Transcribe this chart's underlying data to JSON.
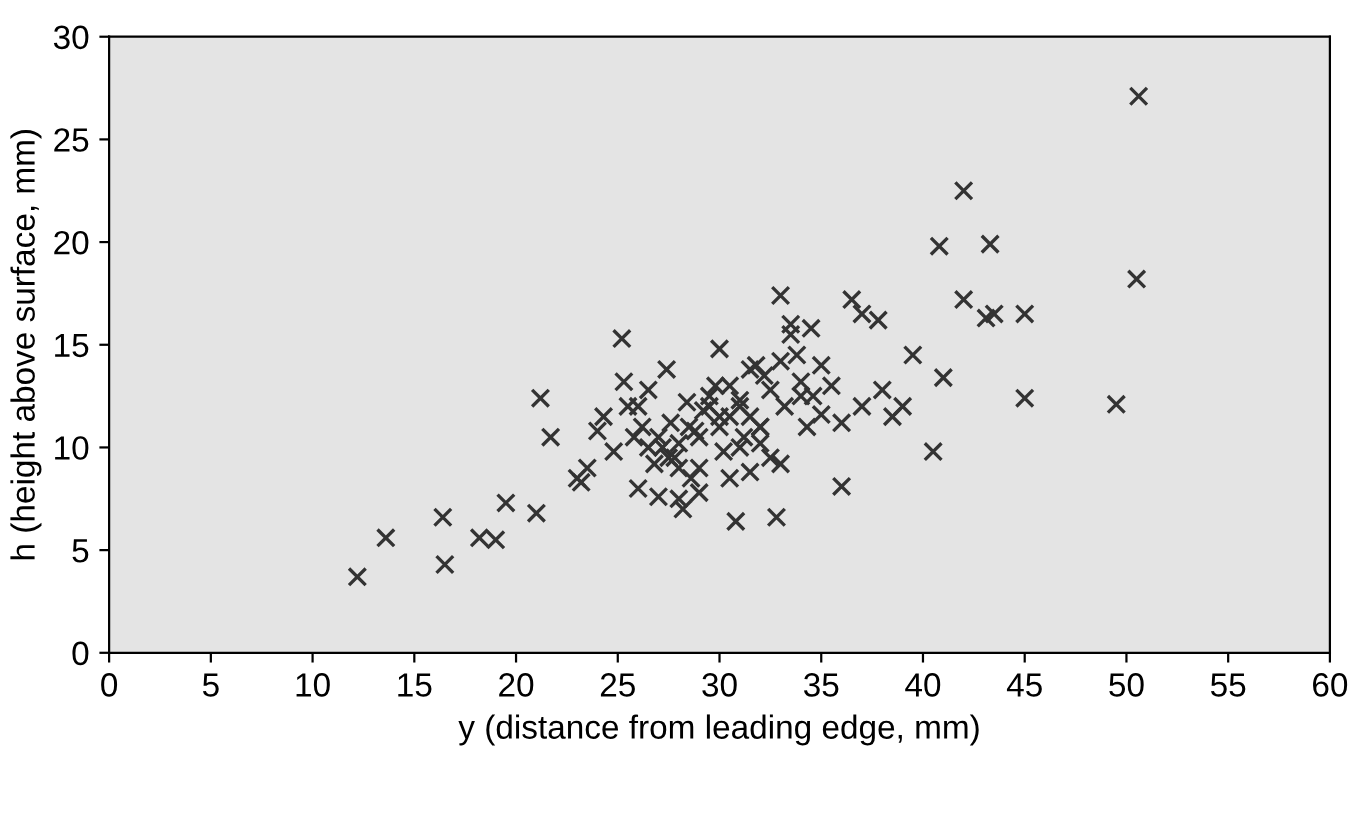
{
  "chart_data": {
    "type": "scatter",
    "xlabel": "y (distance from leading edge, mm)",
    "ylabel": "h (height above surface, mm)",
    "xlim": [
      0,
      60
    ],
    "ylim": [
      0,
      30
    ],
    "xticks": [
      0,
      5,
      10,
      15,
      20,
      25,
      30,
      35,
      40,
      45,
      50,
      55,
      60
    ],
    "yticks": [
      0,
      5,
      10,
      15,
      20,
      25,
      30
    ],
    "marker": "cross",
    "grid": false,
    "series": [
      {
        "color": "#333333",
        "x": [
          12.2,
          13.6,
          16.4,
          16.5,
          18.2,
          19.0,
          19.5,
          21.0,
          21.2,
          21.7,
          23.0,
          23.2,
          23.5,
          24.0,
          24.3,
          24.8,
          25.2,
          25.3,
          25.5,
          25.8,
          26.0,
          26.2,
          26.5,
          26.8,
          27.0,
          27.2,
          27.4,
          27.6,
          27.8,
          28.0,
          28.2,
          28.4,
          28.6,
          28.8,
          29.0,
          29.2,
          29.5,
          29.8,
          30.0,
          30.2,
          30.5,
          30.8,
          31.0,
          31.2,
          31.5,
          31.8,
          32.0,
          32.2,
          32.5,
          32.8,
          33.0,
          33.2,
          33.5,
          33.8,
          34.0,
          34.3,
          34.6,
          35.0,
          35.5,
          36.0,
          36.5,
          37.0,
          37.8,
          38.0,
          38.5,
          39.0,
          39.5,
          40.5,
          40.8,
          41.0,
          42.0,
          42.0,
          43.1,
          43.3,
          43.5,
          45.0,
          45.0,
          49.5,
          50.5,
          50.6,
          26.5,
          27.5,
          28.5,
          29.5,
          30.5,
          31.5,
          32.5,
          33.5,
          27.0,
          28.0,
          29.0,
          30.0,
          31.0,
          32.0,
          33.0,
          34.0,
          31.0,
          30.5,
          29.0,
          28.0,
          26.0,
          33.0,
          32.0,
          34.5,
          35.0,
          36.0,
          37.0,
          30.0,
          31.5
        ],
        "values": [
          3.7,
          5.6,
          6.6,
          4.3,
          5.6,
          5.5,
          7.3,
          6.8,
          12.4,
          10.5,
          8.5,
          8.3,
          9.0,
          10.8,
          11.5,
          9.8,
          15.3,
          13.2,
          12.0,
          10.5,
          8.0,
          11.0,
          12.8,
          9.2,
          7.6,
          10.0,
          13.8,
          11.2,
          9.5,
          10.2,
          7.0,
          12.2,
          8.5,
          10.8,
          9.0,
          11.8,
          12.5,
          13.0,
          14.8,
          9.8,
          11.5,
          6.4,
          12.3,
          10.5,
          8.8,
          14.0,
          11.0,
          13.5,
          9.5,
          6.6,
          17.4,
          12.0,
          16.0,
          14.5,
          13.2,
          11.0,
          12.5,
          14.0,
          13.0,
          8.1,
          17.2,
          16.5,
          16.2,
          12.8,
          11.5,
          12.0,
          14.5,
          9.8,
          19.8,
          13.4,
          22.5,
          17.2,
          16.3,
          19.9,
          16.5,
          16.5,
          12.4,
          12.1,
          18.2,
          27.1,
          10.0,
          9.5,
          11.0,
          12.0,
          13.0,
          11.5,
          12.8,
          15.5,
          10.5,
          9.0,
          10.5,
          11.5,
          10.0,
          11.0,
          14.2,
          12.5,
          12.0,
          8.5,
          7.8,
          7.5,
          12.0,
          9.2,
          10.2,
          15.8,
          11.6,
          11.2,
          12.0,
          11.0,
          13.8
        ]
      }
    ]
  }
}
